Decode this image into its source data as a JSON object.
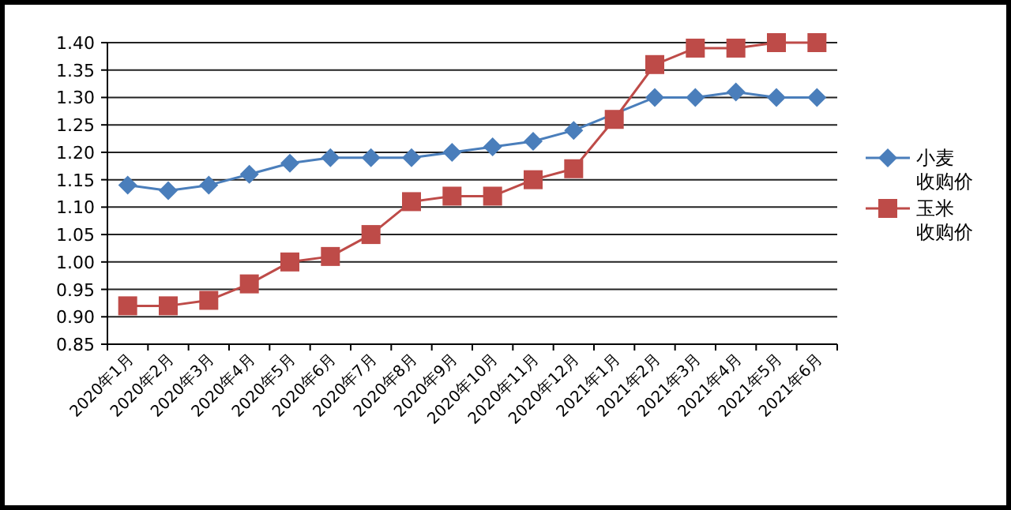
{
  "chart_data": {
    "type": "line",
    "categories": [
      "2020年1月",
      "2020年2月",
      "2020年3月",
      "2020年4月",
      "2020年5月",
      "2020年6月",
      "2020年7月",
      "2020年8月",
      "2020年9月",
      "2020年10月",
      "2020年11月",
      "2020年12月",
      "2021年1月",
      "2021年2月",
      "2021年3月",
      "2021年4月",
      "2021年5月",
      "2021年6月"
    ],
    "series": [
      {
        "name": "小麦收购价",
        "color": "#4a7ebb",
        "marker": "diamond",
        "values": [
          1.14,
          1.13,
          1.14,
          1.16,
          1.18,
          1.19,
          1.19,
          1.19,
          1.2,
          1.21,
          1.22,
          1.24,
          null,
          1.3,
          1.3,
          1.31,
          1.3,
          1.3
        ]
      },
      {
        "name": "玉米收购价",
        "color": "#be4b48",
        "marker": "square",
        "values": [
          0.92,
          0.92,
          0.93,
          0.96,
          1.0,
          1.01,
          1.05,
          1.11,
          1.12,
          1.12,
          1.15,
          1.17,
          1.26,
          1.36,
          1.39,
          1.39,
          1.4,
          1.4
        ]
      }
    ],
    "ylim": [
      0.85,
      1.4
    ],
    "yticks": [
      {
        "value": 0.85,
        "label": "0.85"
      },
      {
        "value": 0.9,
        "label": "0.90"
      },
      {
        "value": 0.95,
        "label": "0.95"
      },
      {
        "value": 1.0,
        "label": "1.00"
      },
      {
        "value": 1.05,
        "label": "1.05"
      },
      {
        "value": 1.1,
        "label": "1.10"
      },
      {
        "value": 1.15,
        "label": "1.15"
      },
      {
        "value": 1.2,
        "label": "1.20"
      },
      {
        "value": 1.25,
        "label": "1.25"
      },
      {
        "value": 1.3,
        "label": "1.30"
      },
      {
        "value": 1.35,
        "label": "1.35"
      },
      {
        "value": 1.4,
        "label": "1.40"
      }
    ],
    "grid": "y",
    "legend": "right",
    "line_style": "solid"
  }
}
